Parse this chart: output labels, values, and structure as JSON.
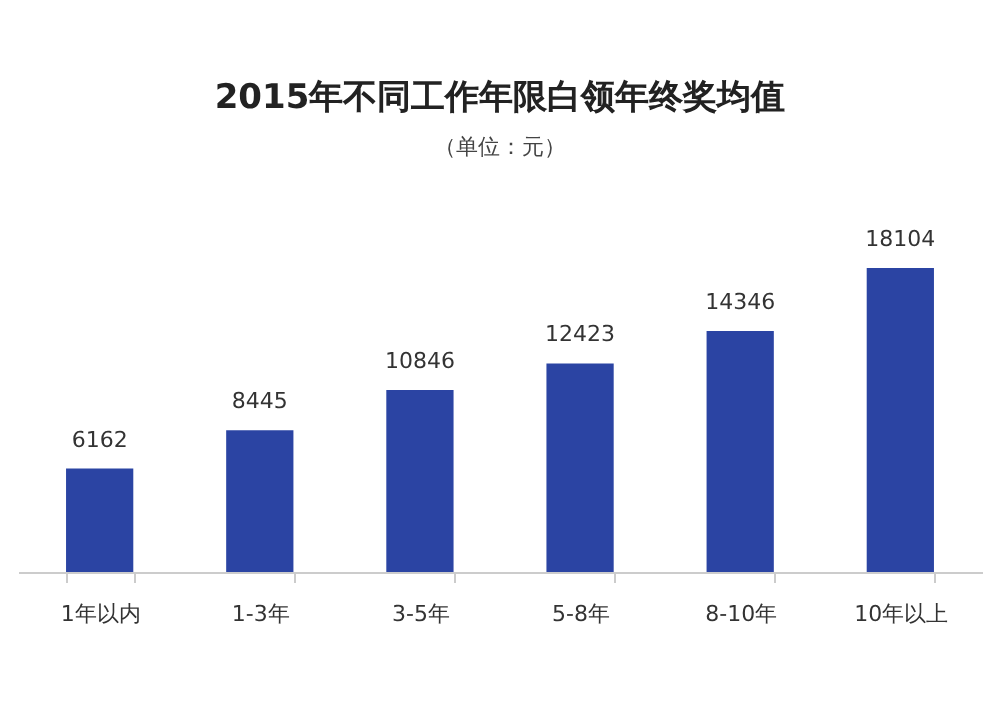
{
  "chart_data": {
    "type": "bar",
    "title": "2015年不同工作年限白领年终奖均值",
    "subtitle": "（单位：元）",
    "categories": [
      "1年以内",
      "1-3年",
      "3-5年",
      "5-8年",
      "8-10年",
      "10年以上"
    ],
    "values": [
      6162,
      8445,
      10846,
      12423,
      14346,
      18104
    ],
    "color": "#2b44a3",
    "data_labels": true,
    "grid": false
  }
}
